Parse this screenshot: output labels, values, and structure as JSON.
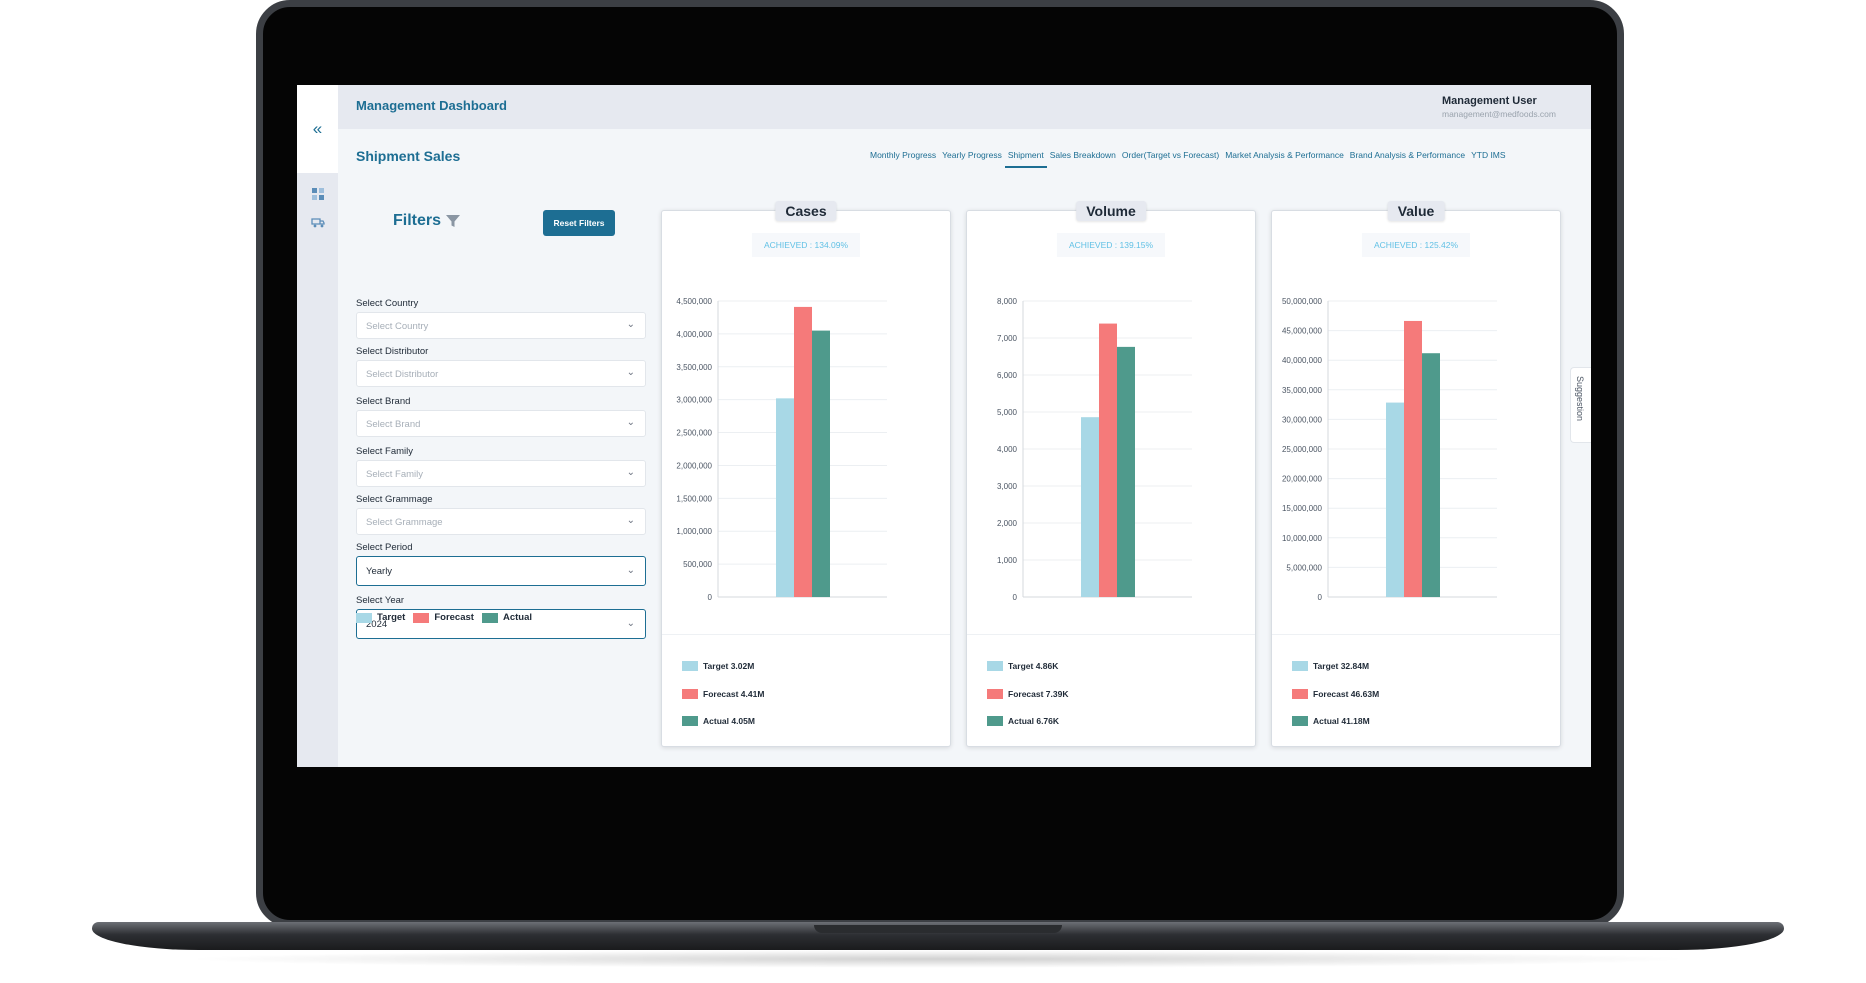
{
  "header": {
    "app_title": "Management Dashboard",
    "user_name": "Management User",
    "user_email": "management@medfoods.com"
  },
  "page": {
    "title": "Shipment Sales"
  },
  "tabs": [
    {
      "label": "Monthly Progress",
      "active": false
    },
    {
      "label": "Yearly Progress",
      "active": false
    },
    {
      "label": "Shipment",
      "active": true
    },
    {
      "label": "Sales Breakdown",
      "active": false
    },
    {
      "label": "Order(Target vs Forecast)",
      "active": false
    },
    {
      "label": "Market Analysis & Performance",
      "active": false
    },
    {
      "label": "Brand Analysis & Performance",
      "active": false
    },
    {
      "label": "YTD IMS",
      "active": false
    }
  ],
  "filters": {
    "title": "Filters",
    "reset_label": "Reset Filters",
    "country": {
      "label": "Select Country",
      "placeholder": "Select Country"
    },
    "distributor": {
      "label": "Select Distributor",
      "placeholder": "Select Distributor"
    },
    "brand": {
      "label": "Select Brand",
      "placeholder": "Select Brand"
    },
    "family": {
      "label": "Select Family",
      "placeholder": "Select Family"
    },
    "grammage": {
      "label": "Select Grammage",
      "placeholder": "Select Grammage"
    },
    "period": {
      "label": "Select Period",
      "value": "Yearly"
    },
    "year": {
      "label": "Select Year",
      "value": "2024"
    }
  },
  "legend": {
    "target": "Target",
    "forecast": "Forecast",
    "actual": "Actual"
  },
  "colors": {
    "target": "#a8d8e6",
    "forecast": "#f57a7a",
    "actual": "#4f9a8c",
    "accent": "#1d6e93"
  },
  "suggestion_label": "Suggestion",
  "chart_data": [
    {
      "type": "bar",
      "title": "Cases",
      "achieved": "ACHIEVED : 134.09%",
      "categories": [
        "Target",
        "Forecast",
        "Actual"
      ],
      "values": [
        3020000,
        4410000,
        4050000
      ],
      "ylim": [
        0,
        4500000
      ],
      "yticks": [
        "0",
        "500,000",
        "1,000,000",
        "1,500,000",
        "2,000,000",
        "2,500,000",
        "3,000,000",
        "3,500,000",
        "4,000,000",
        "4,500,000"
      ],
      "legend": [
        "Target 3.02M",
        "Forecast 4.41M",
        "Actual 4.05M"
      ]
    },
    {
      "type": "bar",
      "title": "Volume",
      "achieved": "ACHIEVED : 139.15%",
      "categories": [
        "Target",
        "Forecast",
        "Actual"
      ],
      "values": [
        4860,
        7390,
        6760
      ],
      "ylim": [
        0,
        8000
      ],
      "yticks": [
        "0",
        "1,000",
        "2,000",
        "3,000",
        "4,000",
        "5,000",
        "6,000",
        "7,000",
        "8,000"
      ],
      "legend": [
        "Target 4.86K",
        "Forecast 7.39K",
        "Actual 6.76K"
      ]
    },
    {
      "type": "bar",
      "title": "Value",
      "achieved": "ACHIEVED : 125.42%",
      "categories": [
        "Target",
        "Forecast",
        "Actual"
      ],
      "values": [
        32840000,
        46630000,
        41180000
      ],
      "ylim": [
        0,
        50000000
      ],
      "yticks": [
        "0",
        "5,000,000",
        "10,000,000",
        "15,000,000",
        "20,000,000",
        "25,000,000",
        "30,000,000",
        "35,000,000",
        "40,000,000",
        "45,000,000",
        "50,000,000"
      ],
      "legend": [
        "Target 32.84M",
        "Forecast 46.63M",
        "Actual 41.18M"
      ]
    }
  ]
}
